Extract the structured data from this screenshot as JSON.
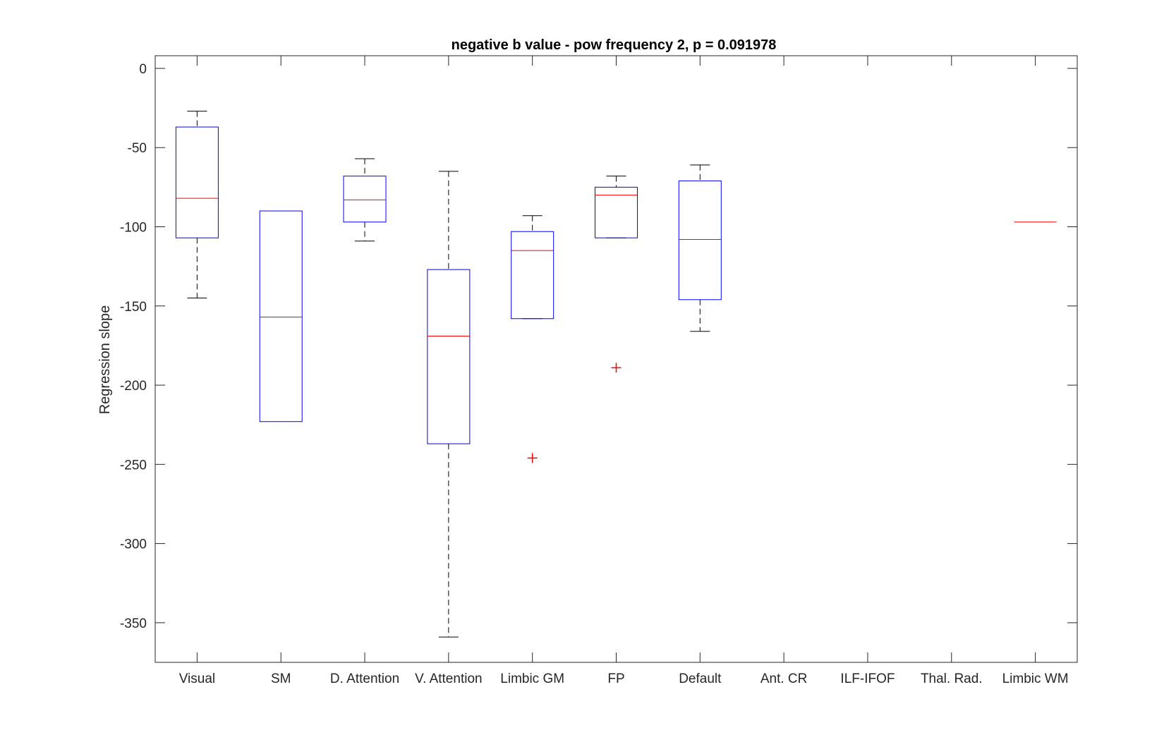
{
  "chart_data": {
    "type": "box",
    "title": "negative b value - pow frequency 2, p = 0.091978",
    "xlabel": "",
    "ylabel": "Regression slope",
    "ylim": [
      -375,
      8
    ],
    "yticks": [
      0,
      -50,
      -100,
      -150,
      -200,
      -250,
      -300,
      -350
    ],
    "categories": [
      "Visual",
      "SM",
      "D. Attention",
      "V. Attention",
      "Limbic GM",
      "FP",
      "Default",
      "Ant. CR",
      "ILF-IFOF",
      "Thal. Rad.",
      "Limbic WM"
    ],
    "boxes": [
      {
        "category": "Visual",
        "whisker_high": -27,
        "q3": -37,
        "median": -82,
        "q1": -107,
        "whisker_low": -145,
        "outliers": []
      },
      {
        "category": "SM",
        "whisker_high": -90,
        "q3": -90,
        "median": -157,
        "q1": -223,
        "whisker_low": -223,
        "outliers": []
      },
      {
        "category": "D. Attention",
        "whisker_high": -57,
        "q3": -68,
        "median": -83,
        "q1": -97,
        "whisker_low": -109,
        "outliers": []
      },
      {
        "category": "V. Attention",
        "whisker_high": -65,
        "q3": -127,
        "median": -169,
        "q1": -237,
        "whisker_low": -359,
        "outliers": []
      },
      {
        "category": "Limbic GM",
        "whisker_high": -93,
        "q3": -103,
        "median": -115,
        "q1": -158,
        "whisker_low": -158,
        "outliers": [
          -246
        ]
      },
      {
        "category": "FP",
        "whisker_high": -68,
        "q3": -75,
        "median": -80,
        "q1": -107,
        "whisker_low": -107,
        "outliers": [
          -189
        ]
      },
      {
        "category": "Default",
        "whisker_high": -61,
        "q3": -71,
        "median": -108,
        "q1": -146,
        "whisker_low": -166,
        "outliers": []
      },
      {
        "category": "Ant. CR",
        "empty": true
      },
      {
        "category": "ILF-IFOF",
        "empty": true
      },
      {
        "category": "Thal. Rad.",
        "empty": true
      },
      {
        "category": "Limbic WM",
        "whisker_high": -97,
        "q3": -97,
        "median": -97,
        "q1": -97,
        "whisker_low": -97,
        "outliers": []
      }
    ],
    "colors": {
      "box": "#0000ff",
      "median": "#ff0000",
      "whisker": "#000000",
      "outlier": "#ff0000",
      "axes": "#262626"
    },
    "grid": false,
    "legend": "none"
  }
}
